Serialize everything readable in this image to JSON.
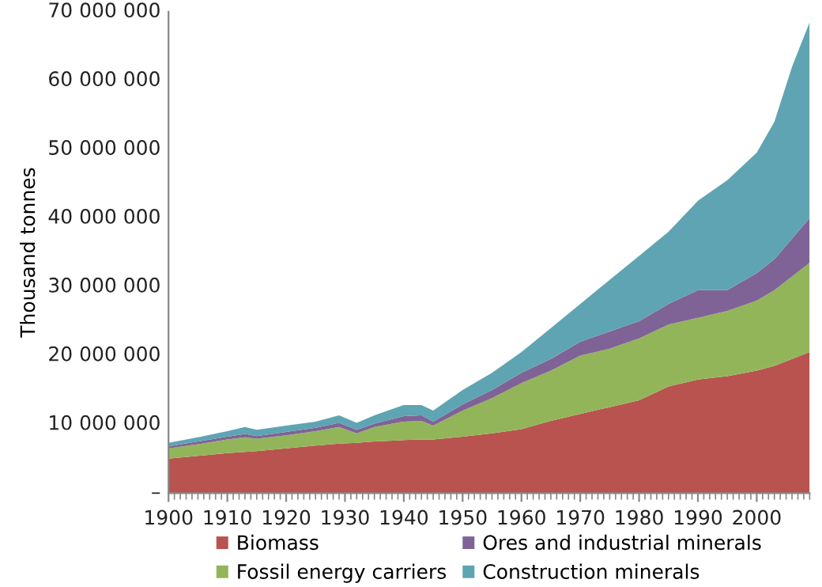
{
  "chart_data": {
    "type": "area",
    "stacked": true,
    "ylabel": "Thousand tonnes",
    "x": [
      1900,
      1905,
      1910,
      1913,
      1915,
      1920,
      1925,
      1929,
      1932,
      1935,
      1940,
      1943,
      1945,
      1950,
      1955,
      1960,
      1965,
      1970,
      1975,
      1980,
      1985,
      1990,
      1995,
      2000,
      2003,
      2006,
      2009
    ],
    "series": [
      {
        "name": "Biomass",
        "color": "#b9534f",
        "values": [
          5000000,
          5400000,
          5800000,
          6000000,
          6100000,
          6500000,
          6900000,
          7200000,
          7300000,
          7500000,
          7700000,
          7800000,
          7800000,
          8200000,
          8700000,
          9300000,
          10500000,
          11500000,
          12500000,
          13500000,
          15500000,
          16500000,
          17000000,
          17800000,
          18500000,
          19500000,
          20500000
        ]
      },
      {
        "name": "Fossil energy carriers",
        "color": "#93b55a",
        "values": [
          1500000,
          1700000,
          2000000,
          2100000,
          1800000,
          1900000,
          2100000,
          2400000,
          1400000,
          2100000,
          2700000,
          2700000,
          2000000,
          3800000,
          5100000,
          6700000,
          7300000,
          8500000,
          8500000,
          9000000,
          9000000,
          9000000,
          9500000,
          10200000,
          11000000,
          12000000,
          13000000
        ]
      },
      {
        "name": "Ores and industrial minerals",
        "color": "#7f6396",
        "values": [
          300000,
          400000,
          400000,
          500000,
          400000,
          500000,
          500000,
          600000,
          500000,
          500000,
          800000,
          800000,
          600000,
          900000,
          1200000,
          1500000,
          1700000,
          2000000,
          2500000,
          2500000,
          3000000,
          4000000,
          3000000,
          4000000,
          4500000,
          5500000,
          6500000
        ]
      },
      {
        "name": "Construction minerals",
        "color": "#5fa4b2",
        "values": [
          500000,
          600000,
          800000,
          1000000,
          900000,
          900000,
          900000,
          1100000,
          1000000,
          1200000,
          1600000,
          1500000,
          1600000,
          2100000,
          2500000,
          3000000,
          4500000,
          5500000,
          7500000,
          9500000,
          10500000,
          13000000,
          16000000,
          17500000,
          20000000,
          25000000,
          28500000
        ]
      }
    ],
    "xlim": [
      1900,
      2009
    ],
    "xticks": [
      1900,
      1910,
      1920,
      1930,
      1940,
      1950,
      1960,
      1970,
      1980,
      1990,
      2000
    ],
    "ylim": [
      0,
      70000000
    ],
    "yticks": [
      {
        "value": 0,
        "label": "–"
      },
      {
        "value": 10000000,
        "label": "10 000 000"
      },
      {
        "value": 20000000,
        "label": "20 000 000"
      },
      {
        "value": 30000000,
        "label": "30 000 000"
      },
      {
        "value": 40000000,
        "label": "40 000 000"
      },
      {
        "value": 50000000,
        "label": "50 000 000"
      },
      {
        "value": 60000000,
        "label": "60 000 000"
      },
      {
        "value": 70000000,
        "label": "70 000 000"
      }
    ],
    "legend": "bottom",
    "grid": false
  }
}
